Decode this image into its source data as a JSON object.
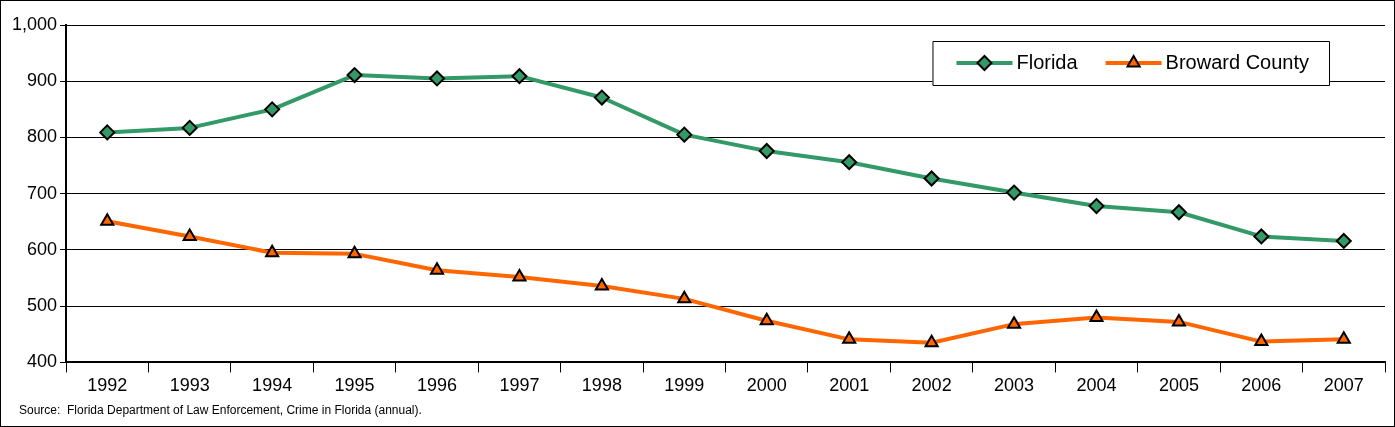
{
  "chart_data": {
    "type": "line",
    "categories": [
      "1992",
      "1993",
      "1994",
      "1995",
      "1996",
      "1997",
      "1998",
      "1999",
      "2000",
      "2001",
      "2002",
      "2003",
      "2004",
      "2005",
      "2006",
      "2007"
    ],
    "series": [
      {
        "name": "Florida",
        "color": "#339966",
        "marker": "diamond",
        "values": [
          809,
          817,
          850,
          911,
          905,
          909,
          871,
          805,
          776,
          756,
          727,
          702,
          678,
          667,
          624,
          616
        ]
      },
      {
        "name": "Broward County",
        "color": "#ff6600",
        "marker": "triangle",
        "values": [
          651,
          624,
          595,
          593,
          564,
          552,
          536,
          513,
          474,
          441,
          435,
          468,
          480,
          472,
          437,
          441
        ]
      }
    ],
    "ylim": [
      400,
      1000
    ],
    "yticks": [
      400,
      500,
      600,
      700,
      800,
      900,
      {
        "value": 1000,
        "label": "1,000"
      }
    ],
    "grid": "y",
    "legend": "top right",
    "line_style": "solid",
    "annotations": [
      "Source:  Florida Department of Law Enforcement, Crime in Florida (annual)."
    ]
  }
}
